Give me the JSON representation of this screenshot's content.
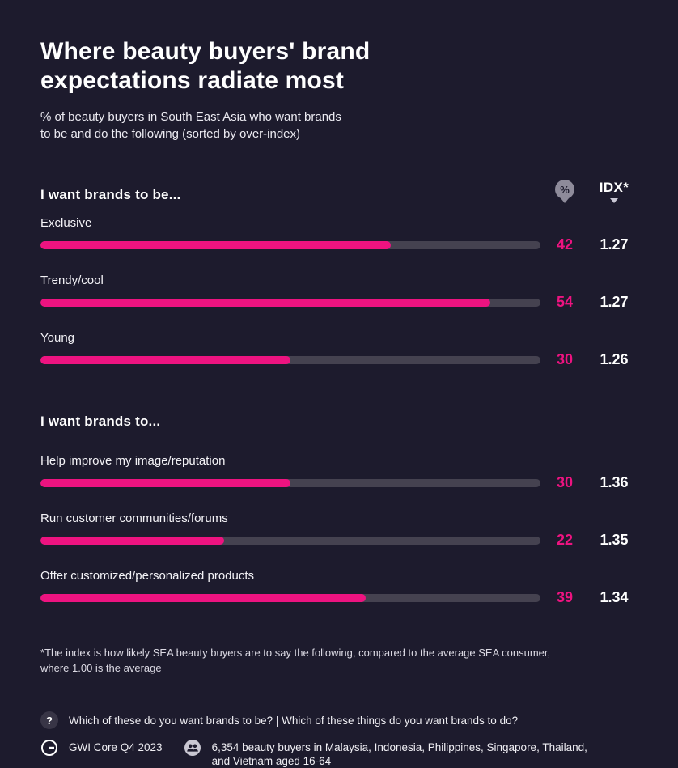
{
  "colors": {
    "background": "#1D1B2D",
    "accent_pink": "#ED1380",
    "bar_track": "#454250",
    "text_primary": "#FFFFFF"
  },
  "header": {
    "title_line1": "Where beauty buyers' brand",
    "title_line2": "expectations radiate most",
    "subtitle_line1": "% of beauty buyers in South East Asia who want brands",
    "subtitle_line2": "to be and do the following (sorted by over-index)"
  },
  "columns": {
    "pct_icon": "%",
    "idx_label": "IDX*"
  },
  "chart_data": {
    "type": "bar",
    "orientation": "horizontal",
    "title": "Where beauty buyers' brand expectations radiate most",
    "subtitle": "% of beauty buyers in South East Asia who want brands to be and do the following (sorted by over-index)",
    "unit": "%",
    "xlim": [
      0,
      60
    ],
    "value_column_icon": "%",
    "index_column_label": "IDX*",
    "groups": [
      {
        "title": "I want brands to be...",
        "rows": [
          {
            "label": "Exclusive",
            "value": 42,
            "index": "1.27"
          },
          {
            "label": "Trendy/cool",
            "value": 54,
            "index": "1.27"
          },
          {
            "label": "Young",
            "value": 30,
            "index": "1.26"
          }
        ]
      },
      {
        "title": "I want brands to...",
        "rows": [
          {
            "label": "Help improve my image/reputation",
            "value": 30,
            "index": "1.36"
          },
          {
            "label": "Run customer communities/forums",
            "value": 22,
            "index": "1.35"
          },
          {
            "label": "Offer customized/personalized products",
            "value": 39,
            "index": "1.34"
          }
        ]
      }
    ]
  },
  "footnote": {
    "line1": "*The index is how likely SEA beauty buyers are to say the following, compared to the average SEA consumer,",
    "line2": "where 1.00 is the average"
  },
  "footer": {
    "question": "Which of these do you want brands to be? | Which of these things do you want brands to do?",
    "source": "GWI Core Q4 2023",
    "audience_line1": "6,354 beauty buyers in Malaysia, Indonesia, Philippines, Singapore, Thailand,",
    "audience_line2": "and Vietnam aged 16-64"
  },
  "icons": {
    "question_glyph": "?"
  }
}
